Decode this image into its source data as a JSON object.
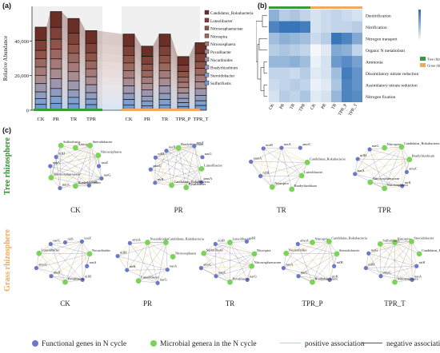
{
  "panels": {
    "a": "(a)",
    "b": "(b)",
    "c": "(c)"
  },
  "chart_data": [
    {
      "type": "bar",
      "panel": "a",
      "ylabel": "Relative Abundance",
      "ylim": [
        0,
        60000
      ],
      "yticks": [
        "0",
        "20,000",
        "40,000"
      ],
      "ytick_values": [
        0,
        20000,
        40000
      ],
      "categories": [
        "CK",
        "PR",
        "TR",
        "TPR",
        "CK",
        "PR",
        "TR",
        "TPR_P",
        "TPR_T"
      ],
      "group_colors": {
        "tree": "#3a9a3a",
        "grass": "#f0a860"
      },
      "totals": [
        48000,
        57000,
        53000,
        46000,
        44000,
        37000,
        44000,
        31000,
        39000
      ],
      "series": [
        {
          "name": "Candidatus_Rokubacteria",
          "color": "#6b2f28"
        },
        {
          "name": "Luteolibacter",
          "color": "#7f4038"
        },
        {
          "name": "Nitrososphaeraceae",
          "color": "#8e5448"
        },
        {
          "name": "Nitrospira",
          "color": "#9b6860"
        },
        {
          "name": "Nitrososphaera",
          "color": "#a67a78"
        },
        {
          "name": "Povalibacter",
          "color": "#a88c92"
        },
        {
          "name": "Nocardioides",
          "color": "#9e96ad"
        },
        {
          "name": "Bradyrhizobium",
          "color": "#8f9cc0"
        },
        {
          "name": "Steroidobacter",
          "color": "#7f9fce"
        },
        {
          "name": "Sulfurifustis",
          "color": "#6c9bd6"
        }
      ]
    },
    {
      "type": "heatmap",
      "panel": "b",
      "columns": [
        "CK",
        "PR",
        "TR",
        "TPR",
        "CK",
        "PR",
        "TR",
        "TPR_P",
        "TPR_T"
      ],
      "rows": [
        "Denitrification",
        "Nitrification",
        "Nitrogen transport",
        "Organic N metabolism",
        "Ammonia",
        "Dissimilatory nitrate reduction",
        "Assimilatory nitrate reduction",
        "Nitrogen fixation"
      ],
      "values": [
        [
          0.55,
          0.35,
          0.4,
          0.3,
          0.2,
          0.25,
          0.3,
          0.25,
          0.2
        ],
        [
          0.85,
          0.95,
          0.95,
          0.9,
          0.2,
          0.25,
          0.3,
          0.3,
          0.35
        ],
        [
          0.45,
          0.55,
          0.5,
          0.45,
          0.25,
          0.35,
          0.95,
          0.85,
          0.6
        ],
        [
          0.35,
          0.4,
          0.35,
          0.3,
          0.05,
          0.15,
          0.6,
          0.55,
          0.3
        ],
        [
          0.5,
          0.5,
          0.55,
          0.45,
          0.1,
          0.2,
          0.7,
          0.8,
          0.65
        ],
        [
          0.3,
          0.3,
          0.25,
          0.35,
          0.15,
          0.2,
          0.45,
          0.9,
          0.75
        ],
        [
          0.25,
          0.3,
          0.35,
          0.3,
          0.1,
          0.15,
          0.4,
          0.85,
          0.75
        ],
        [
          0.2,
          0.35,
          0.3,
          0.4,
          0.15,
          0.2,
          0.5,
          0.85,
          0.8
        ]
      ],
      "legend": [
        {
          "name": "Tree rhizosphere",
          "color": "#3a9a3a"
        },
        {
          "name": "Grass rhizosphere",
          "color": "#f0a860"
        }
      ],
      "colorbar": {
        "low": "#ffffff",
        "high": "#2f6fb5"
      }
    }
  ],
  "networks": {
    "rows": [
      {
        "label": "Tree rhizosphere",
        "color": "#2f8f2f",
        "nets": [
          {
            "name": "CK",
            "nodes": [
              {
                "t": "Nitrospira",
                "g": 1
              },
              {
                "t": "Steroidobacter",
                "g": 1
              },
              {
                "t": "Nitrososphaera",
                "g": 1
              },
              {
                "t": "nosZ",
                "g": 0
              },
              {
                "t": "narG",
                "g": 0
              },
              {
                "t": "nirS",
                "g": 0
              },
              {
                "t": "Bradyrhizobium",
                "g": 1
              },
              {
                "t": "nasA",
                "g": 0
              },
              {
                "t": "Nitrososphaeraceae",
                "g": 1
              },
              {
                "t": "napA",
                "g": 0
              },
              {
                "t": "nifH",
                "g": 0
              },
              {
                "t": "Sulfurifustis",
                "g": 1
              }
            ]
          },
          {
            "name": "PR",
            "nodes": [
              {
                "t": "Bradyrhizobium",
                "g": 1
              },
              {
                "t": "nasA",
                "g": 0
              },
              {
                "t": "narG",
                "g": 0
              },
              {
                "t": "Luteolibacter",
                "g": 1
              },
              {
                "t": "pmoA",
                "g": 0
              },
              {
                "t": "Povalibacter",
                "g": 1
              },
              {
                "t": "Candidatus_Rokubacteria",
                "g": 1
              },
              {
                "t": "nirK",
                "g": 0
              },
              {
                "t": "amoC",
                "g": 0
              },
              {
                "t": "nifH",
                "g": 0
              },
              {
                "t": "norB",
                "g": 0
              }
            ]
          },
          {
            "name": "TR",
            "nodes": [
              {
                "t": "nasA",
                "g": 0
              },
              {
                "t": "amoC",
                "g": 0
              },
              {
                "t": "Candidatus_Rokubacteria",
                "g": 1
              },
              {
                "t": "Luteolibacter",
                "g": 1
              },
              {
                "t": "Bradyrhizobium",
                "g": 1
              },
              {
                "t": "Nitrospira",
                "g": 1
              },
              {
                "t": "nifH",
                "g": 0
              },
              {
                "t": "amoA",
                "g": 0
              },
              {
                "t": "norB",
                "g": 0
              }
            ]
          },
          {
            "name": "TPR",
            "nodes": [
              {
                "t": "Nitrospira",
                "g": 1
              },
              {
                "t": "Candidatus_Rokubacteria",
                "g": 1
              },
              {
                "t": "Bradyrhizobium",
                "g": 1
              },
              {
                "t": "amoC",
                "g": 0
              },
              {
                "t": "nirK",
                "g": 0
              },
              {
                "t": "Nitrososphaera",
                "g": 1
              },
              {
                "t": "Nitrososphaeraceae",
                "g": 1
              },
              {
                "t": "nasA",
                "g": 0
              },
              {
                "t": "nifH",
                "g": 0
              },
              {
                "t": "narG",
                "g": 0
              }
            ]
          }
        ]
      },
      {
        "label": "Grass rhizosphere",
        "color": "#f0a860",
        "nets": [
          {
            "name": "CK",
            "nodes": [
              {
                "t": "nirS",
                "g": 0
              },
              {
                "t": "nosZ",
                "g": 0
              },
              {
                "t": "Nocardioides",
                "g": 1
              },
              {
                "t": "nasA",
                "g": 0
              },
              {
                "t": "nifH",
                "g": 0
              },
              {
                "t": "Povalibacter",
                "g": 1
              },
              {
                "t": "norB",
                "g": 0
              },
              {
                "t": "amoA",
                "g": 0
              },
              {
                "t": "Luteolibacter",
                "g": 1
              },
              {
                "t": "narG",
                "g": 0
              }
            ]
          },
          {
            "name": "PR",
            "nodes": [
              {
                "t": "Nocardioides",
                "g": 1
              },
              {
                "t": "Candidatus_Rokubacteria",
                "g": 1
              },
              {
                "t": "Nitrososphaera",
                "g": 1
              },
              {
                "t": "nasA",
                "g": 0
              },
              {
                "t": "narG",
                "g": 0
              },
              {
                "t": "Luteolibacter",
                "g": 1
              },
              {
                "t": "nirK",
                "g": 0
              },
              {
                "t": "nifH",
                "g": 0
              },
              {
                "t": "amoA",
                "g": 0
              }
            ]
          },
          {
            "name": "TR",
            "nodes": [
              {
                "t": "Luteolibacter",
                "g": 1
              },
              {
                "t": "nifH",
                "g": 0
              },
              {
                "t": "Nitrospira",
                "g": 1
              },
              {
                "t": "Nitrososphaeraceae",
                "g": 1
              },
              {
                "t": "narG",
                "g": 0
              },
              {
                "t": "Povalibacter",
                "g": 1
              },
              {
                "t": "nasA",
                "g": 0
              },
              {
                "t": "amoC",
                "g": 0
              },
              {
                "t": "Sulfurifustis",
                "g": 1
              },
              {
                "t": "norB",
                "g": 0
              }
            ]
          },
          {
            "name": "TPR_P",
            "nodes": [
              {
                "t": "Nitrospira",
                "g": 1
              },
              {
                "t": "Candidatus_Rokubacteria",
                "g": 1
              },
              {
                "t": "Steroidobacter",
                "g": 1
              },
              {
                "t": "nifH",
                "g": 0
              },
              {
                "t": "nirK",
                "g": 0
              },
              {
                "t": "Bradyrhizobium",
                "g": 1
              },
              {
                "t": "narG",
                "g": 0
              },
              {
                "t": "nasA",
                "g": 0
              },
              {
                "t": "Nocardioides",
                "g": 1
              },
              {
                "t": "amoA",
                "g": 0
              }
            ]
          },
          {
            "name": "TPR_T",
            "nodes": [
              {
                "t": "Nitrospira",
                "g": 1
              },
              {
                "t": "Steroidobacter",
                "g": 1
              },
              {
                "t": "Candidatus_Rokubacteria",
                "g": 1
              },
              {
                "t": "nirK",
                "g": 0
              },
              {
                "t": "nasA",
                "g": 0
              },
              {
                "t": "Nitrososphaera",
                "g": 1
              },
              {
                "t": "amoC",
                "g": 0
              },
              {
                "t": "nifH",
                "g": 0
              },
              {
                "t": "narG",
                "g": 0
              },
              {
                "t": "Sulfurifustis",
                "g": 1
              }
            ]
          }
        ]
      }
    ],
    "legend": {
      "functional": "Functional genes in N cycle",
      "functional_color": "#6b78c8",
      "microbial": "Microbial genera in the N cycle",
      "microbial_color": "#7bd35a",
      "positive": "positive association",
      "positive_color": "#f2c57c",
      "negative": "negative association",
      "negative_color": "#555555"
    }
  }
}
